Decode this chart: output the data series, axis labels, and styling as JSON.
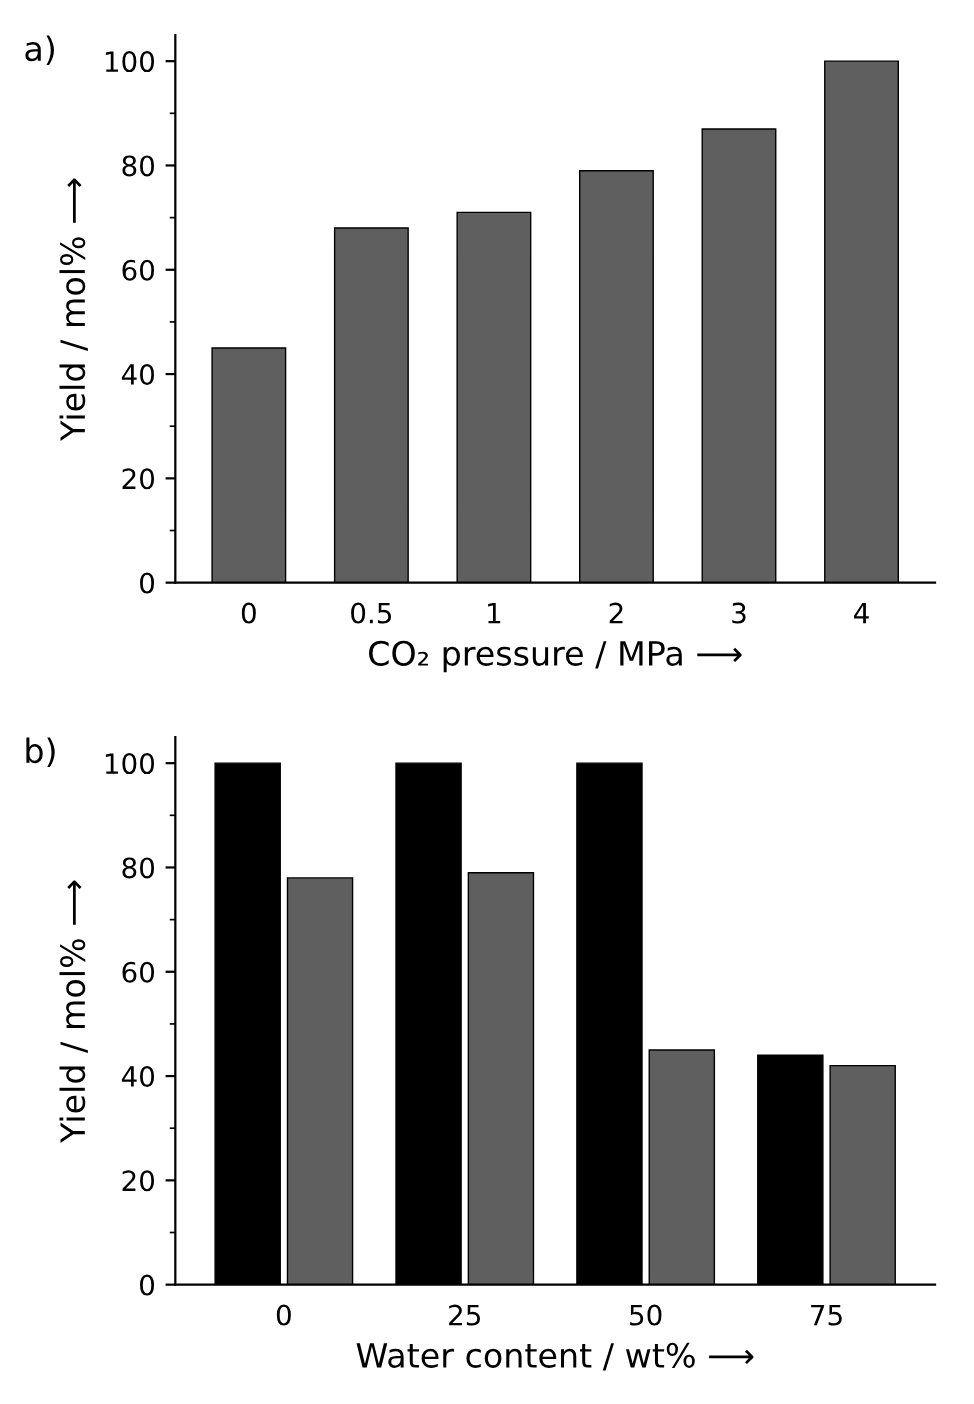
{
  "chart_data": [
    {
      "type": "bar",
      "categories": [
        "0",
        "0.5",
        "1",
        "2",
        "3",
        "4"
      ],
      "series": [
        {
          "color": "#5f5f5f",
          "values": [
            45,
            68,
            71,
            79,
            87,
            100
          ]
        }
      ],
      "xlabel": "CO₂ pressure / MPa ⟶",
      "ylabel": "Yield / mol% ⟶",
      "ylim": [
        0,
        105
      ],
      "yticks": [
        0,
        20,
        40,
        60,
        80,
        100
      ],
      "grid": false,
      "legend": false,
      "annotations": [
        "a)"
      ]
    },
    {
      "type": "bar",
      "categories": [
        "0",
        "25",
        "50",
        "75"
      ],
      "series": [
        {
          "color": "#000000",
          "values": [
            100,
            100,
            100,
            44
          ]
        },
        {
          "color": "#5f5f5f",
          "values": [
            78,
            79,
            45,
            42
          ]
        }
      ],
      "xlabel": "Water content / wt% ⟶",
      "ylabel": "Yield / mol% ⟶",
      "ylim": [
        0,
        105
      ],
      "yticks": [
        0,
        20,
        40,
        60,
        80,
        100
      ],
      "grid": false,
      "legend": false,
      "annotations": [
        "b)"
      ]
    }
  ]
}
